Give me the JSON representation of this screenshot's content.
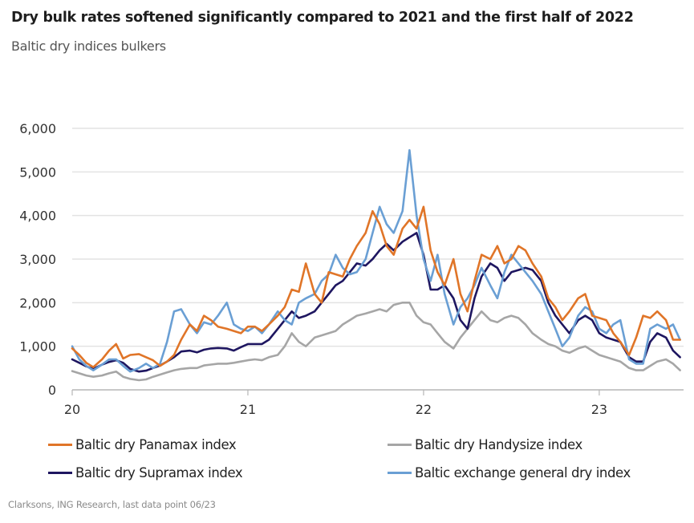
{
  "title": "Dry bulk rates softened significantly compared to 2021 and the first half of 2022",
  "subtitle": "Baltic dry indices bulkers",
  "source": "Clarksons, ING Research, last data point 06/23",
  "chart_data": {
    "type": "line",
    "title": "Dry bulk rates softened significantly compared to 2021 and the first half of 2022",
    "subtitle": "Baltic dry indices bulkers",
    "xlabel": "",
    "ylabel": "",
    "ylim": [
      0,
      6000
    ],
    "yticks": [
      0,
      1000,
      2000,
      3000,
      4000,
      5000,
      6000
    ],
    "ytick_labels": [
      "0",
      "1,000",
      "2,000",
      "3,000",
      "4,000",
      "5,000",
      "6,000"
    ],
    "xlim": [
      2020.0,
      2023.48
    ],
    "xticks": [
      2020,
      2021,
      2022,
      2023
    ],
    "xtick_labels": [
      "20",
      "21",
      "22",
      "23"
    ],
    "grid": "horizontal",
    "legend_position": "bottom",
    "x": [
      2020.0,
      2020.04,
      2020.08,
      2020.12,
      2020.17,
      2020.21,
      2020.25,
      2020.29,
      2020.33,
      2020.38,
      2020.42,
      2020.46,
      2020.5,
      2020.54,
      2020.58,
      2020.62,
      2020.67,
      2020.71,
      2020.75,
      2020.79,
      2020.83,
      2020.88,
      2020.92,
      2020.96,
      2021.0,
      2021.04,
      2021.08,
      2021.12,
      2021.17,
      2021.21,
      2021.25,
      2021.29,
      2021.33,
      2021.38,
      2021.42,
      2021.46,
      2021.5,
      2021.54,
      2021.58,
      2021.62,
      2021.67,
      2021.71,
      2021.75,
      2021.79,
      2021.83,
      2021.88,
      2021.92,
      2021.96,
      2022.0,
      2022.04,
      2022.08,
      2022.12,
      2022.17,
      2022.21,
      2022.25,
      2022.29,
      2022.33,
      2022.38,
      2022.42,
      2022.46,
      2022.5,
      2022.54,
      2022.58,
      2022.62,
      2022.67,
      2022.71,
      2022.75,
      2022.79,
      2022.83,
      2022.88,
      2022.92,
      2022.96,
      2023.0,
      2023.04,
      2023.08,
      2023.12,
      2023.17,
      2023.21,
      2023.25,
      2023.29,
      2023.33,
      2023.38,
      2023.42,
      2023.46
    ],
    "series": [
      {
        "name": "Baltic dry Panamax index",
        "color": "#e07528",
        "values": [
          950,
          800,
          620,
          520,
          700,
          900,
          1050,
          720,
          800,
          820,
          750,
          680,
          550,
          650,
          800,
          1150,
          1500,
          1350,
          1700,
          1600,
          1450,
          1400,
          1350,
          1300,
          1450,
          1450,
          1350,
          1500,
          1700,
          1900,
          2300,
          2250,
          2900,
          2200,
          2000,
          2700,
          2650,
          2600,
          3000,
          3300,
          3600,
          4100,
          3800,
          3300,
          3100,
          3700,
          3900,
          3700,
          4200,
          3200,
          2700,
          2400,
          3000,
          2200,
          1800,
          2500,
          3100,
          3000,
          3300,
          2900,
          3000,
          3300,
          3200,
          2900,
          2600,
          2100,
          1900,
          1600,
          1800,
          2100,
          2200,
          1700,
          1650,
          1600,
          1300,
          1100,
          800,
          1200,
          1700,
          1650,
          1800,
          1600,
          1150,
          1150
        ]
      },
      {
        "name": "Baltic dry Handysize index",
        "color": "#a6a6a6",
        "values": [
          430,
          380,
          330,
          300,
          330,
          380,
          420,
          300,
          250,
          220,
          240,
          300,
          350,
          400,
          450,
          480,
          500,
          500,
          560,
          580,
          600,
          600,
          620,
          650,
          680,
          700,
          680,
          750,
          800,
          1000,
          1300,
          1100,
          1000,
          1200,
          1250,
          1300,
          1350,
          1500,
          1600,
          1700,
          1750,
          1800,
          1850,
          1800,
          1950,
          2000,
          2000,
          1700,
          1550,
          1500,
          1300,
          1100,
          950,
          1200,
          1400,
          1600,
          1800,
          1600,
          1550,
          1650,
          1700,
          1650,
          1500,
          1300,
          1150,
          1050,
          1000,
          900,
          850,
          950,
          1000,
          900,
          800,
          750,
          700,
          650,
          500,
          450,
          450,
          550,
          650,
          700,
          600,
          450
        ]
      },
      {
        "name": "Baltic dry Supramax index",
        "color": "#1e1660",
        "values": [
          700,
          620,
          540,
          480,
          580,
          640,
          680,
          620,
          480,
          420,
          440,
          500,
          560,
          650,
          750,
          880,
          900,
          860,
          920,
          950,
          960,
          950,
          900,
          980,
          1050,
          1050,
          1050,
          1150,
          1400,
          1600,
          1800,
          1650,
          1700,
          1800,
          2000,
          2200,
          2400,
          2500,
          2700,
          2900,
          2850,
          3000,
          3200,
          3350,
          3200,
          3400,
          3500,
          3600,
          3100,
          2300,
          2300,
          2400,
          2100,
          1600,
          1400,
          2100,
          2600,
          2900,
          2800,
          2500,
          2700,
          2750,
          2800,
          2750,
          2500,
          2000,
          1700,
          1500,
          1300,
          1600,
          1700,
          1600,
          1300,
          1200,
          1150,
          1100,
          750,
          650,
          650,
          1100,
          1300,
          1200,
          900,
          750
        ]
      },
      {
        "name": "Baltic exchange general dry index",
        "color": "#6a9fd4",
        "values": [
          1000,
          700,
          550,
          450,
          580,
          700,
          700,
          550,
          420,
          500,
          600,
          500,
          600,
          1100,
          1800,
          1850,
          1500,
          1300,
          1550,
          1500,
          1700,
          2000,
          1500,
          1400,
          1350,
          1450,
          1300,
          1500,
          1800,
          1600,
          1500,
          2000,
          2100,
          2200,
          2500,
          2650,
          3100,
          2800,
          2650,
          2700,
          3000,
          3600,
          4200,
          3800,
          3600,
          4100,
          5500,
          4000,
          3000,
          2500,
          3100,
          2200,
          1500,
          1900,
          2100,
          2400,
          2800,
          2400,
          2100,
          2700,
          3100,
          2900,
          2700,
          2500,
          2200,
          1800,
          1400,
          1000,
          1200,
          1700,
          1900,
          1800,
          1400,
          1300,
          1500,
          1600,
          700,
          600,
          600,
          1400,
          1500,
          1400,
          1500,
          1150
        ]
      }
    ]
  },
  "legend": {
    "items": [
      {
        "label": "Baltic dry Panamax index",
        "color": "#e07528"
      },
      {
        "label": "Baltic dry Handysize index",
        "color": "#a6a6a6"
      },
      {
        "label": "Baltic dry Supramax index",
        "color": "#1e1660"
      },
      {
        "label": "Baltic exchange general dry index",
        "color": "#6a9fd4"
      }
    ]
  }
}
